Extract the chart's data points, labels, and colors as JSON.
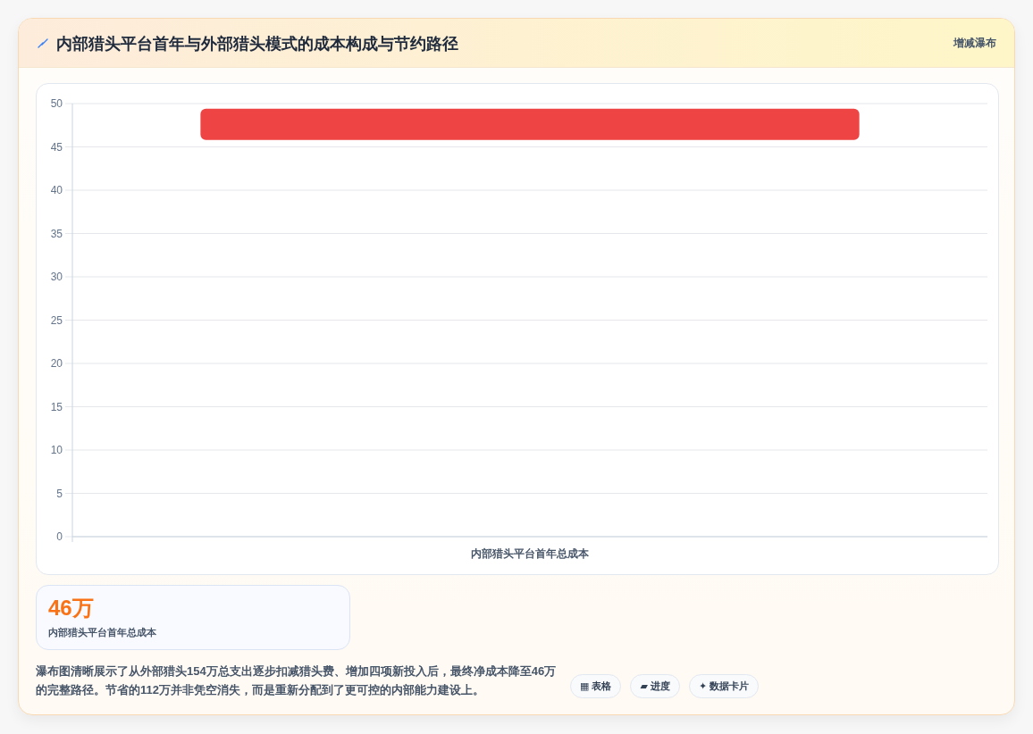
{
  "chart_data": [
    {
      "type": "bar",
      "title": "内部猎头平台首年与外部猎头模式的成本构成与节约路径",
      "categories": [
        "内部猎头平台首年总成本"
      ],
      "values": [
        3.6
      ],
      "base": [
        45.8
      ],
      "color": "#ef4444",
      "ylim": [
        0,
        50
      ],
      "yticks": [
        0,
        5,
        10,
        15,
        20,
        25,
        30,
        35,
        40,
        45,
        50
      ],
      "grid": "y",
      "annotations": [
        "增减瀑布",
        "瀑布图清晰展示了从外部猎头154万总支出逐步扣减猎头费、增加四项新投入后，最终净成本降至46万的完整路径。节省的112万并非凭空消失，而是重新分配到了更可控的内部能力建设上。",
        "▦ 表格",
        "▰ 进度",
        "✦ 数据卡片"
      ]
    },
    {
      "type": "other",
      "title": "46万",
      "subtitle": "内部猎头平台首年总成本"
    }
  ]
}
